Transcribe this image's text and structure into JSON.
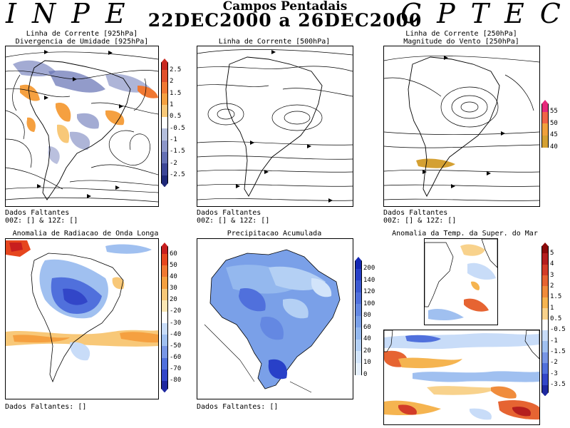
{
  "header": {
    "left_logo": "INPE",
    "right_logo": "CPTEC",
    "title": "Campos Pentadais",
    "subtitle": "22DEC2000 a 26DEC2000"
  },
  "panels": {
    "p1": {
      "label_line1": "Linha de Corrente [925hPa]",
      "label_line2": "Divergencia de Umidade [925hPa]",
      "footer_line1": "Dados Faltantes",
      "footer_line2": "00Z: [] & 12Z: []"
    },
    "p2": {
      "label_line1": "Linha de Corrente [500hPa]",
      "footer_line1": "Dados Faltantes",
      "footer_line2": "00Z: [] & 12Z: []"
    },
    "p3": {
      "label_line1": "Linha de Corrente [250hPa]",
      "label_line2": "Magnitude do Vento [250hPa]",
      "footer_line1": "Dados Faltantes",
      "footer_line2": "00Z: [] & 12Z: []"
    },
    "p4": {
      "label_line1": "Anomalia de Radiacao de Onda Longa",
      "footer_line1": "Dados Faltantes: []"
    },
    "p5": {
      "label_line1": "Precipitacao Acumulada",
      "footer_line1": "Dados Faltantes: []"
    },
    "p6": {
      "label_line1": "Anomalia da Temp. da Super. do Mar"
    }
  },
  "colorbars": {
    "divergence": {
      "labels": [
        "2.5",
        "2",
        "1.5",
        "1",
        "0.5",
        "-0.5",
        "-1",
        "-1.5",
        "-2",
        "-2.5"
      ],
      "colors": [
        "#c8281e",
        "#e0502a",
        "#f07832",
        "#f5a040",
        "#f8c878",
        "#ffffff",
        "#b4bedc",
        "#8c96c8",
        "#6470b4",
        "#3c4696",
        "#1e2878"
      ]
    },
    "wind": {
      "labels": [
        "55",
        "50",
        "45",
        "40"
      ],
      "colors": [
        "#e6287a",
        "#f06446",
        "#f0a03c",
        "#d4a032"
      ]
    },
    "olr": {
      "labels": [
        "60",
        "50",
        "40",
        "30",
        "20",
        "-20",
        "-30",
        "-40",
        "-50",
        "-60",
        "-70",
        "-80"
      ],
      "colors": [
        "#c81e1e",
        "#e6461e",
        "#f07832",
        "#f5a040",
        "#f8c878",
        "#fae6b4",
        "#ffffff",
        "#c8dcf8",
        "#a0c0f0",
        "#7896e6",
        "#5070dc",
        "#3246c8",
        "#1e28a0"
      ]
    },
    "precip": {
      "labels": [
        "200",
        "140",
        "120",
        "100",
        "80",
        "60",
        "40",
        "20",
        "10",
        "0"
      ],
      "colors": [
        "#1428b4",
        "#2840c8",
        "#3c5ad2",
        "#5070dc",
        "#6488e2",
        "#7aa0e8",
        "#94b8ee",
        "#b4d0f4",
        "#d2e4fa",
        "#e6f0fc"
      ]
    },
    "sst": {
      "labels": [
        "5",
        "4",
        "3",
        "2",
        "1.5",
        "1",
        "0.5",
        "-0.5",
        "-1",
        "-1.5",
        "-2",
        "-3",
        "-3.5"
      ],
      "colors": [
        "#8c0a0a",
        "#b41e1e",
        "#d23c28",
        "#e66432",
        "#f08c3c",
        "#f5b450",
        "#f8d28c",
        "#ffffff",
        "#c8dcf8",
        "#a0c0f0",
        "#7896e6",
        "#5070dc",
        "#3246c8",
        "#1e28a0"
      ]
    }
  }
}
